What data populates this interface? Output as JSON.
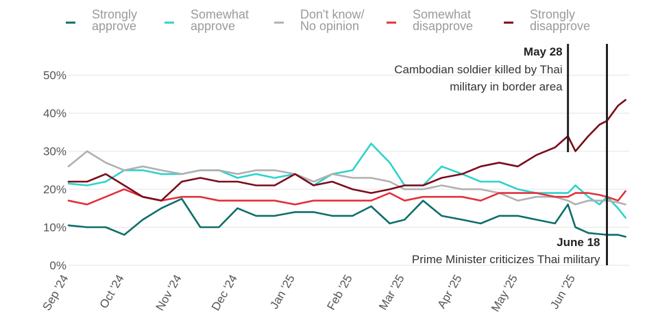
{
  "chart_data": {
    "type": "line",
    "title": "",
    "xlabel": "",
    "ylabel": "",
    "ylim": [
      0,
      55
    ],
    "xlim": [
      "2024-09-01",
      "2025-06-30"
    ],
    "y_ticks": [
      0,
      10,
      20,
      30,
      40,
      50
    ],
    "y_tick_labels": [
      "0%",
      "10%",
      "20%",
      "30%",
      "40%",
      "50%"
    ],
    "x_ticks": [
      "2024-09-01",
      "2024-10-01",
      "2024-11-01",
      "2024-12-01",
      "2025-01-01",
      "2025-02-01",
      "2025-03-01",
      "2025-04-01",
      "2025-05-01",
      "2025-06-01"
    ],
    "x_tick_labels": [
      "Sep '24",
      "Oct '24",
      "Nov '24",
      "Dec '24",
      "Jan '25",
      "Feb '25",
      "Mar '25",
      "Apr '25",
      "May '25",
      "Jun '25"
    ],
    "grid": true,
    "legend_position": "top",
    "x": [
      "2024-09-01",
      "2024-09-11",
      "2024-09-21",
      "2024-10-01",
      "2024-10-11",
      "2024-10-21",
      "2024-11-01",
      "2024-11-11",
      "2024-11-21",
      "2024-12-01",
      "2024-12-11",
      "2024-12-21",
      "2025-01-01",
      "2025-01-11",
      "2025-01-21",
      "2025-02-01",
      "2025-02-11",
      "2025-02-21",
      "2025-03-01",
      "2025-03-11",
      "2025-03-21",
      "2025-04-01",
      "2025-04-11",
      "2025-04-21",
      "2025-05-01",
      "2025-05-11",
      "2025-05-21",
      "2025-05-28",
      "2025-06-01",
      "2025-06-08",
      "2025-06-14",
      "2025-06-18",
      "2025-06-24",
      "2025-06-28"
    ],
    "series": [
      {
        "name": "Strongly approve",
        "color": "#0d6e6a",
        "values": [
          10.5,
          10,
          10,
          8,
          12,
          15,
          17.5,
          10,
          10,
          15,
          13,
          13,
          14,
          14,
          13,
          13,
          15.5,
          11,
          12,
          17,
          13,
          12,
          11,
          13,
          13,
          12,
          11,
          16,
          10,
          8.5,
          8.2,
          8,
          8,
          7.5
        ]
      },
      {
        "name": "Somewhat approve",
        "color": "#2ed2cb",
        "values": [
          21.5,
          21,
          22,
          25,
          25,
          24,
          24,
          25,
          25,
          23,
          24,
          23,
          24,
          21,
          24,
          25,
          32,
          27,
          21,
          21,
          26,
          24,
          22,
          22,
          20,
          19,
          19,
          19,
          21,
          18,
          16,
          18,
          15,
          12.5
        ]
      },
      {
        "name": "Don't know/ No opinion",
        "color": "#b0b0b0",
        "values": [
          26,
          30,
          27,
          25,
          26,
          25,
          24,
          25,
          25,
          24,
          25,
          25,
          24,
          22,
          24,
          23,
          23,
          22,
          20,
          20,
          21,
          20,
          20,
          19,
          17,
          18,
          18,
          17,
          16,
          17,
          17,
          17,
          16.5,
          16
        ]
      },
      {
        "name": "Somewhat disapprove",
        "color": "#e2323c",
        "values": [
          17,
          16,
          18,
          20,
          18,
          17,
          18,
          18,
          17,
          17,
          17,
          17,
          16,
          17,
          17,
          17,
          17,
          19,
          17,
          18,
          18,
          18,
          17,
          19,
          19,
          19,
          18,
          18,
          19,
          19,
          18.5,
          18,
          17,
          19.5
        ]
      },
      {
        "name": "Strongly disapprove",
        "color": "#7a0c1b",
        "values": [
          22,
          22,
          24,
          21,
          18,
          17,
          22,
          23,
          22,
          22,
          21,
          21,
          24,
          21,
          22,
          20,
          19,
          20,
          21,
          21,
          23,
          24,
          26,
          27,
          26,
          29,
          31,
          34,
          30,
          34,
          37,
          38,
          42,
          43.5
        ]
      }
    ],
    "annotations": [
      {
        "date": "2025-05-28",
        "label": "May 28",
        "text": [
          "Cambodian soldier killed by Thai",
          "military in border area"
        ]
      },
      {
        "date": "2025-06-18",
        "label": "June 18",
        "text": [
          "Prime Minister criticizes Thai military"
        ]
      }
    ]
  }
}
